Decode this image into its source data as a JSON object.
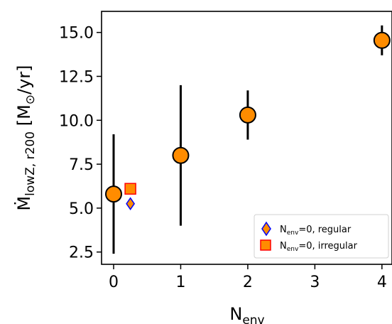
{
  "chart_data": {
    "type": "scatter",
    "xlabel": {
      "base": "N",
      "sub": "env"
    },
    "ylabel": {
      "base": "Ṁ",
      "sub": "lowZ, r200",
      "units_open": " [M",
      "sun": "⊙",
      "units_close": "/yr]"
    },
    "xlim": [
      -0.18,
      4.15
    ],
    "ylim": [
      1.8,
      16.2
    ],
    "xticks": [
      "0",
      "1",
      "2",
      "3",
      "4"
    ],
    "xtick_values": [
      0,
      1,
      2,
      3,
      4
    ],
    "yticks": [
      "2.5",
      "5.0",
      "7.5",
      "10.0",
      "12.5",
      "15.0"
    ],
    "ytick_values": [
      2.5,
      5.0,
      7.5,
      10.0,
      12.5,
      15.0
    ],
    "grid": false,
    "legend_position": "lower-right",
    "series": [
      {
        "marker": "circle",
        "color": "#ff8c00",
        "edgecolor": "#000000",
        "points": [
          {
            "x": 0,
            "y": 5.8,
            "ylo": 2.4,
            "yhi": 9.2
          },
          {
            "x": 1,
            "y": 8.0,
            "ylo": 4.0,
            "yhi": 12.0
          },
          {
            "x": 2,
            "y": 10.3,
            "ylo": 8.9,
            "yhi": 11.7
          },
          {
            "x": 4,
            "y": 14.55,
            "ylo": 13.7,
            "yhi": 15.4
          }
        ]
      },
      {
        "legend": {
          "base": "N",
          "sub": "env",
          "rest": "=0, regular"
        },
        "marker": "diamond",
        "color": "#ff8c00",
        "edgecolor": "#0000ff",
        "points": [
          {
            "x": 0.25,
            "y": 5.25
          }
        ]
      },
      {
        "legend": {
          "base": "N",
          "sub": "env",
          "rest": "=0, irregular"
        },
        "marker": "square",
        "color": "#ff8c00",
        "edgecolor": "#ff0000",
        "points": [
          {
            "x": 0.25,
            "y": 6.1
          }
        ]
      }
    ]
  }
}
